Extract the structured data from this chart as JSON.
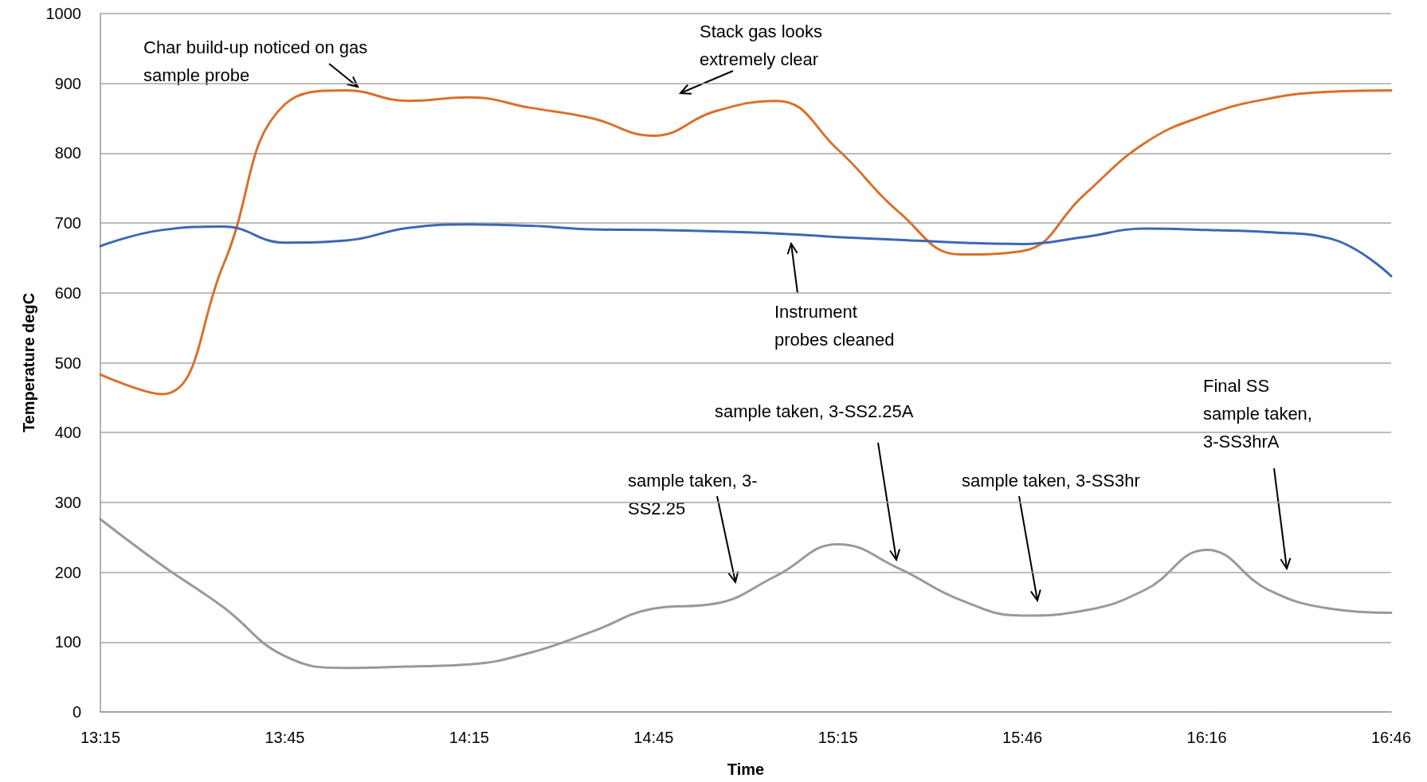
{
  "chart_data": {
    "type": "line",
    "xlabel": "Time",
    "ylabel": "Temperature degC",
    "categories": [
      "13:15",
      null,
      null,
      "13:45",
      null,
      null,
      "14:15",
      null,
      null,
      "14:45",
      null,
      null,
      "15:15",
      null,
      null,
      "15:46",
      null,
      null,
      "16:16",
      null,
      null,
      "16:46"
    ],
    "series": [
      {
        "color": "#d9702b",
        "values": [
          483,
          455,
          640,
          870,
          890,
          875,
          880,
          865,
          850,
          825,
          860,
          875,
          805,
          715,
          655,
          660,
          740,
          815,
          855,
          878,
          888,
          890
        ]
      },
      {
        "color": "#3f66b5",
        "values": [
          667,
          690,
          695,
          672,
          675,
          693,
          698,
          696,
          691,
          690,
          688,
          685,
          680,
          676,
          672,
          670,
          680,
          692,
          690,
          687,
          678,
          624
        ]
      },
      {
        "color": "#999999",
        "values": [
          276,
          210,
          150,
          80,
          63,
          65,
          68,
          85,
          115,
          148,
          155,
          195,
          240,
          205,
          160,
          138,
          145,
          175,
          232,
          175,
          148,
          142
        ]
      }
    ],
    "ylim": [
      0,
      1000
    ],
    "yticks": [
      0,
      100,
      200,
      300,
      400,
      500,
      600,
      700,
      800,
      900,
      1000
    ],
    "grid": "y",
    "marker": "none",
    "line_style": "solid",
    "annotations": [
      "Char build-up noticed on gas\nsample probe",
      "Stack gas looks\nextremely clear",
      "Instrument\nprobes cleaned",
      "sample taken, 3-\nSS2.25",
      "sample taken, 3-SS2.25A",
      "sample taken, 3-SS3hr",
      "Final SS\nsample taken,\n3-SS3hrA"
    ]
  }
}
